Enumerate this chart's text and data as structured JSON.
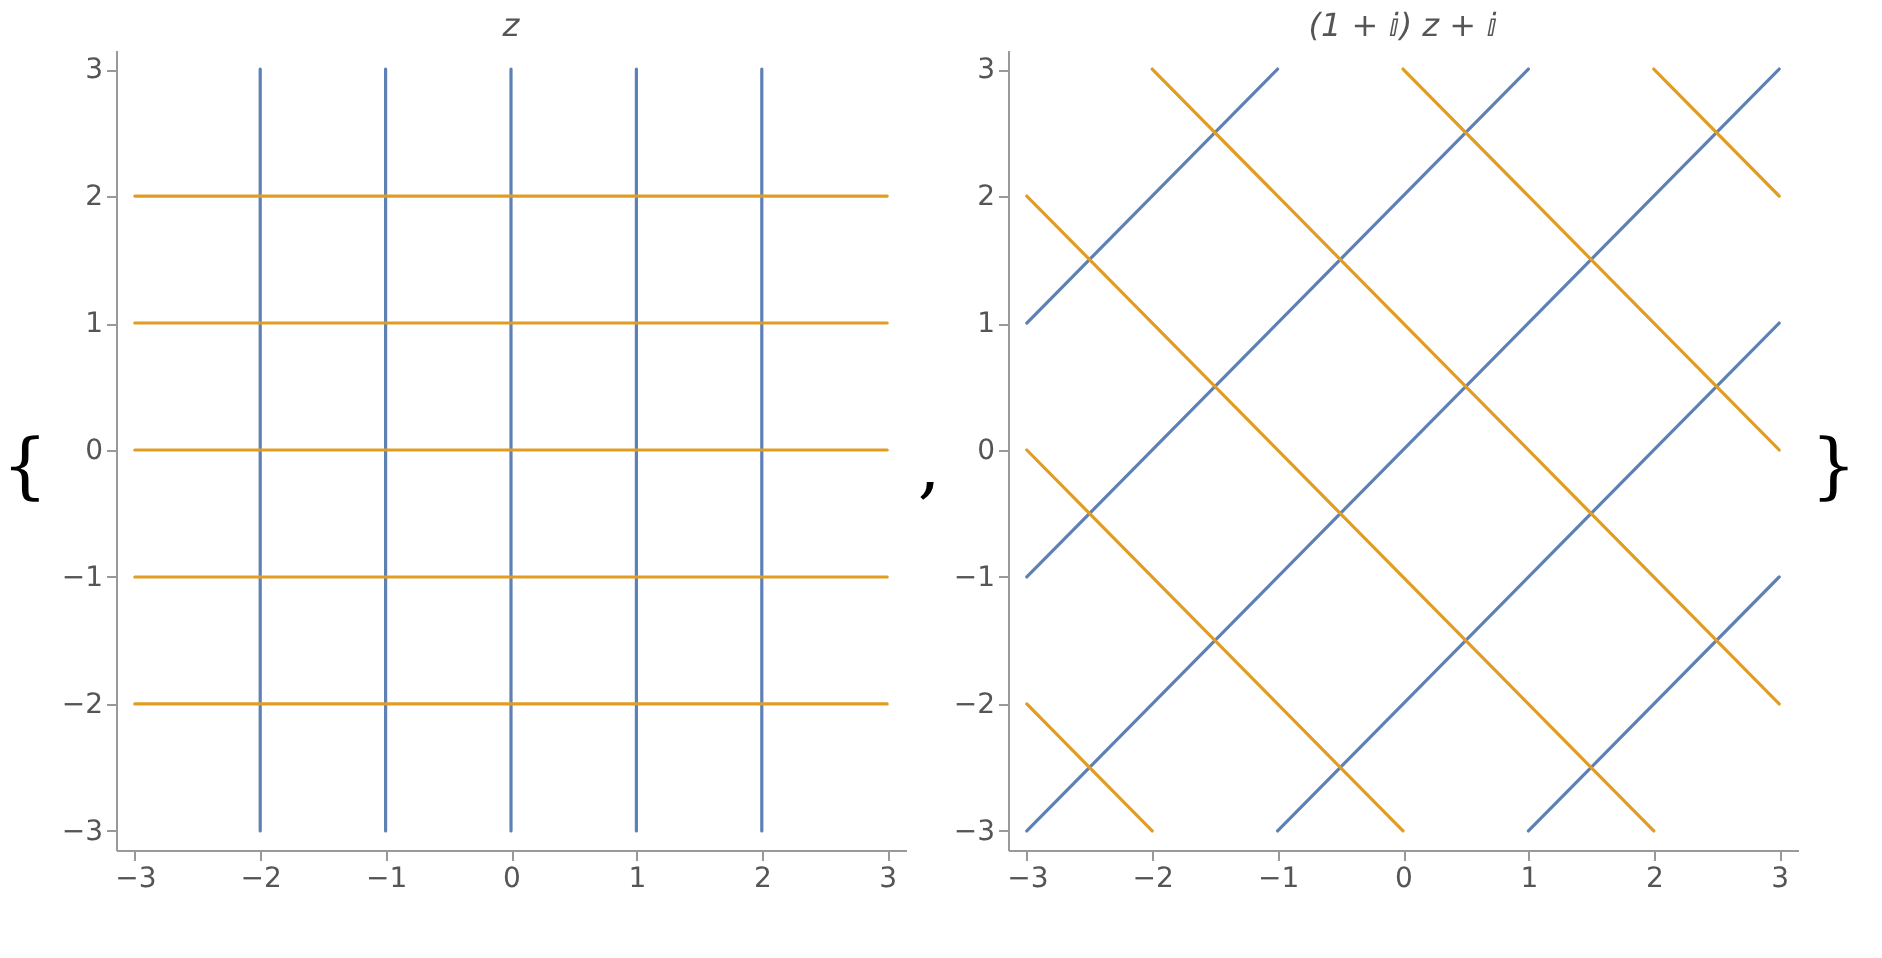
{
  "chart_data": [
    {
      "type": "line",
      "title": "z",
      "xlim": [
        -3.15,
        3.15
      ],
      "ylim": [
        -3.15,
        3.15
      ],
      "xticks": [
        -3,
        -2,
        -1,
        0,
        1,
        2,
        3
      ],
      "yticks": [
        -3,
        -2,
        -1,
        0,
        1,
        2,
        3
      ],
      "grid": false,
      "legend": false,
      "annotations": [
        "{",
        ","
      ],
      "series": [
        {
          "color": "#5e81b5",
          "x": [
            -2,
            -2
          ],
          "values": [
            -3,
            3
          ]
        },
        {
          "color": "#5e81b5",
          "x": [
            -1,
            -1
          ],
          "values": [
            -3,
            3
          ]
        },
        {
          "color": "#5e81b5",
          "x": [
            0,
            0
          ],
          "values": [
            -3,
            3
          ]
        },
        {
          "color": "#5e81b5",
          "x": [
            1,
            1
          ],
          "values": [
            -3,
            3
          ]
        },
        {
          "color": "#5e81b5",
          "x": [
            2,
            2
          ],
          "values": [
            -3,
            3
          ]
        },
        {
          "color": "#e19c24",
          "x": [
            -3,
            3
          ],
          "values": [
            -2,
            -2
          ]
        },
        {
          "color": "#e19c24",
          "x": [
            -3,
            3
          ],
          "values": [
            -1,
            -1
          ]
        },
        {
          "color": "#e19c24",
          "x": [
            -3,
            3
          ],
          "values": [
            0,
            0
          ]
        },
        {
          "color": "#e19c24",
          "x": [
            -3,
            3
          ],
          "values": [
            1,
            1
          ]
        },
        {
          "color": "#e19c24",
          "x": [
            -3,
            3
          ],
          "values": [
            2,
            2
          ]
        }
      ]
    },
    {
      "type": "line",
      "title": "(1 + ⅈ) z + ⅈ",
      "xlim": [
        -3.15,
        3.15
      ],
      "ylim": [
        -3.15,
        3.15
      ],
      "xticks": [
        -3,
        -2,
        -1,
        0,
        1,
        2,
        3
      ],
      "yticks": [
        -3,
        -2,
        -1,
        0,
        1,
        2,
        3
      ],
      "grid": false,
      "legend": false,
      "annotations": [
        "}"
      ],
      "series": [
        {
          "color": "#5e81b5",
          "x": [
            -3,
            -1
          ],
          "values": [
            1,
            3
          ]
        },
        {
          "color": "#5e81b5",
          "x": [
            -3,
            1
          ],
          "values": [
            -1,
            3
          ]
        },
        {
          "color": "#5e81b5",
          "x": [
            -3,
            3
          ],
          "values": [
            -3,
            3
          ]
        },
        {
          "color": "#5e81b5",
          "x": [
            -1,
            3
          ],
          "values": [
            -3,
            1
          ]
        },
        {
          "color": "#5e81b5",
          "x": [
            1,
            3
          ],
          "values": [
            -3,
            -1
          ]
        },
        {
          "color": "#e19c24",
          "x": [
            -3,
            -2
          ],
          "values": [
            -2,
            -3
          ]
        },
        {
          "color": "#e19c24",
          "x": [
            -3,
            0
          ],
          "values": [
            0,
            -3
          ]
        },
        {
          "color": "#e19c24",
          "x": [
            -3,
            2
          ],
          "values": [
            2,
            -3
          ]
        },
        {
          "color": "#e19c24",
          "x": [
            -2,
            3
          ],
          "values": [
            3,
            -2
          ]
        },
        {
          "color": "#e19c24",
          "x": [
            0,
            3
          ],
          "values": [
            3,
            0
          ]
        },
        {
          "color": "#e19c24",
          "x": [
            2,
            3
          ],
          "values": [
            3,
            2
          ]
        }
      ]
    }
  ]
}
